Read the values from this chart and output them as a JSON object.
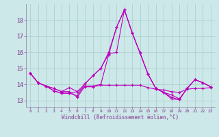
{
  "background_color": "#cce8e8",
  "grid_color": "#aacccc",
  "line_color": "#bb00bb",
  "xlabel": "Windchill (Refroidissement éolien,°C)",
  "axis_color": "#9966aa",
  "tick_color": "#9966aa",
  "x_ticks": [
    0,
    1,
    2,
    3,
    4,
    5,
    6,
    7,
    8,
    9,
    10,
    11,
    12,
    13,
    14,
    15,
    16,
    17,
    18,
    19,
    20,
    21,
    22,
    23
  ],
  "yticks": [
    13,
    14,
    15,
    16,
    17,
    18
  ],
  "ylim": [
    12.6,
    19.0
  ],
  "xlim": [
    -0.5,
    23.5
  ],
  "series": [
    [
      14.7,
      14.1,
      13.9,
      13.75,
      13.55,
      13.8,
      13.55,
      13.85,
      13.85,
      13.95,
      13.95,
      13.95,
      13.95,
      13.95,
      13.95,
      13.8,
      13.7,
      13.65,
      13.55,
      13.5,
      13.7,
      13.75,
      13.75,
      13.8
    ],
    [
      14.7,
      14.1,
      13.9,
      13.75,
      13.55,
      13.55,
      13.2,
      13.9,
      13.9,
      14.0,
      15.85,
      17.55,
      18.65,
      17.2,
      15.95,
      14.65,
      13.75,
      13.5,
      13.1,
      13.05,
      13.75,
      14.3,
      14.1,
      13.85
    ],
    [
      14.7,
      14.1,
      13.9,
      13.6,
      13.45,
      13.45,
      13.3,
      14.05,
      14.55,
      15.0,
      15.9,
      16.0,
      18.65,
      17.2,
      15.95,
      14.65,
      13.75,
      13.5,
      13.35,
      13.1,
      13.75,
      14.3,
      14.1,
      13.85
    ],
    [
      14.7,
      14.1,
      13.9,
      13.6,
      13.45,
      13.45,
      13.55,
      14.05,
      14.55,
      15.0,
      16.0,
      17.55,
      18.65,
      17.2,
      15.95,
      14.65,
      13.75,
      13.5,
      13.2,
      13.05,
      13.75,
      14.3,
      14.1,
      13.85
    ]
  ]
}
